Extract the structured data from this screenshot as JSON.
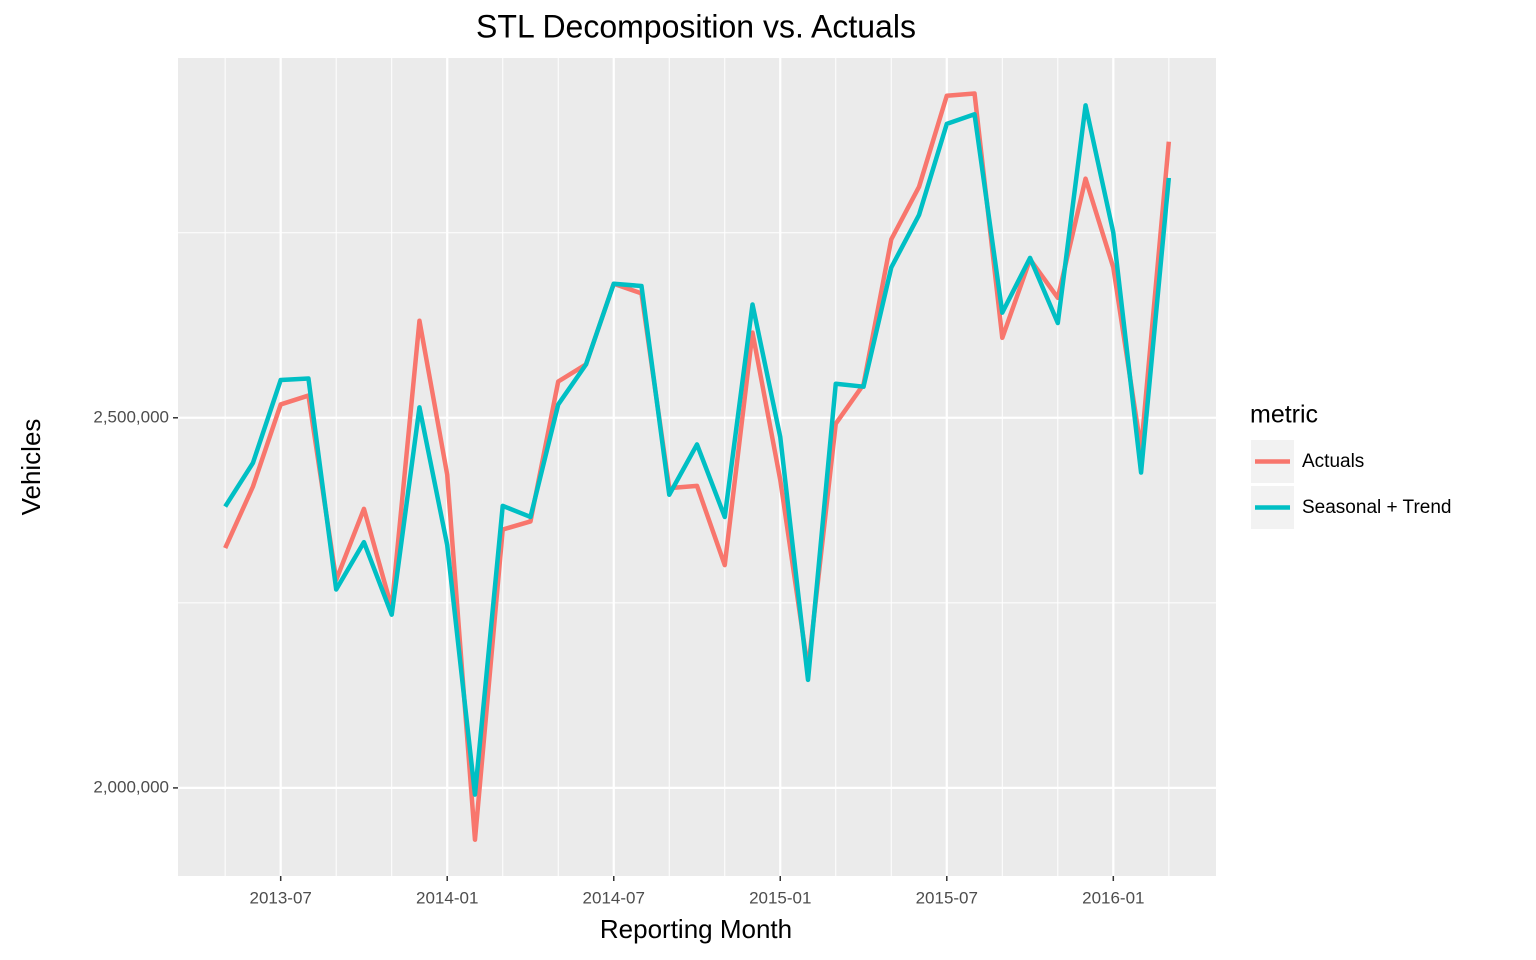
{
  "chart_data": {
    "type": "line",
    "title": "STL Decomposition vs. Actuals",
    "x_label": "Reporting Month",
    "y_label": "Vehicles",
    "x": [
      "2013-05",
      "2013-06",
      "2013-07",
      "2013-08",
      "2013-09",
      "2013-10",
      "2013-11",
      "2013-12",
      "2014-01",
      "2014-02",
      "2014-03",
      "2014-04",
      "2014-05",
      "2014-06",
      "2014-07",
      "2014-08",
      "2014-09",
      "2014-10",
      "2014-11",
      "2014-12",
      "2015-01",
      "2015-02",
      "2015-03",
      "2015-04",
      "2015-05",
      "2015-06",
      "2015-07",
      "2015-08",
      "2015-09",
      "2015-10",
      "2015-11",
      "2015-12",
      "2016-01",
      "2016-02",
      "2016-03"
    ],
    "series": [
      {
        "name": "Actuals",
        "color": "#F8766D",
        "values": [
          2324000,
          2407000,
          2518000,
          2530000,
          2281000,
          2377000,
          2243000,
          2631000,
          2423000,
          1930000,
          2349000,
          2360000,
          2549000,
          2572000,
          2681000,
          2668000,
          2405000,
          2408000,
          2301000,
          2615000,
          2416000,
          2160000,
          2492000,
          2545000,
          2741000,
          2812000,
          2935000,
          2938000,
          2608000,
          2714000,
          2662000,
          2823000,
          2703000,
          2457000,
          2873000
        ]
      },
      {
        "name": "Seasonal + Trend",
        "color": "#00BFC4",
        "values": [
          2380000,
          2439000,
          2551000,
          2553000,
          2268000,
          2332000,
          2234000,
          2514000,
          2328000,
          1991000,
          2381000,
          2366000,
          2518000,
          2572000,
          2681000,
          2678000,
          2396000,
          2464000,
          2366000,
          2653000,
          2474000,
          2146000,
          2546000,
          2542000,
          2703000,
          2774000,
          2897000,
          2910000,
          2642000,
          2716000,
          2628000,
          2922000,
          2750000,
          2426000,
          2824000
        ]
      }
    ],
    "ylim": [
      1881000,
      2986000
    ],
    "yticks": [
      {
        "value": 2000000,
        "label": "2,000,000"
      },
      {
        "value": 2500000,
        "label": "2,500,000"
      }
    ],
    "minor_yticks": [
      2250000,
      2750000
    ],
    "xticks": [
      "2013-07",
      "2014-01",
      "2014-07",
      "2015-01",
      "2015-07",
      "2016-01"
    ],
    "minor_xticks": [
      "2013-05",
      "2013-09",
      "2013-11",
      "2014-03",
      "2014-05",
      "2014-09",
      "2014-11",
      "2015-03",
      "2015-05",
      "2015-09",
      "2015-11",
      "2016-03"
    ],
    "legend_title": "metric",
    "legend_position": "right",
    "grid": true
  }
}
